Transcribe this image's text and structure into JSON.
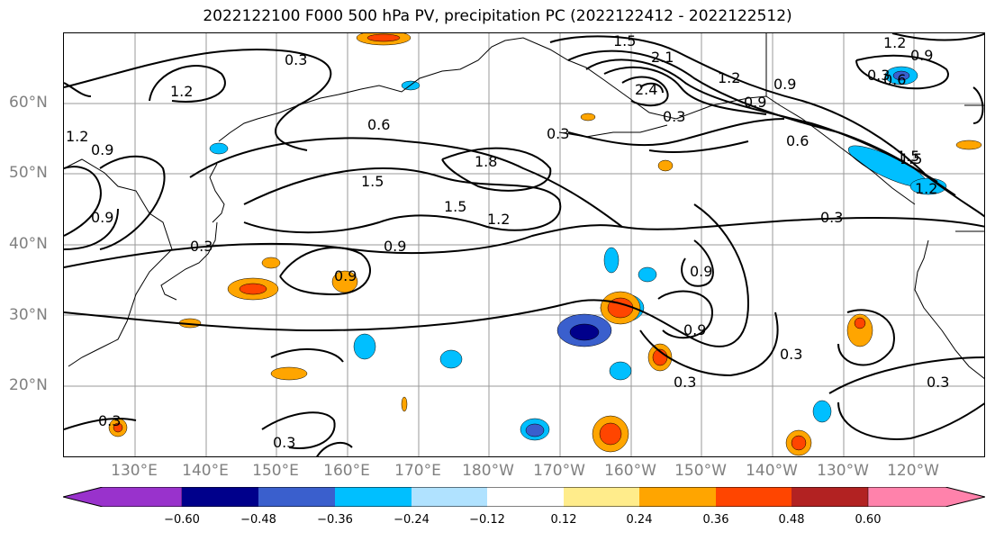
{
  "title": "2022122100 F000 500 hPa PV, precipitation PC (2022122412 - 2022122512)",
  "latitude_labels": [
    "60°N",
    "50°N",
    "40°N",
    "30°N",
    "20°N"
  ],
  "longitude_labels": [
    "130°E",
    "140°E",
    "150°E",
    "160°E",
    "170°E",
    "180°W",
    "170°W",
    "160°W",
    "150°W",
    "140°W",
    "130°W",
    "120°W"
  ],
  "contour_labels": [
    "0.3",
    "1.2",
    "0.6",
    "0.3",
    "1.5",
    "2.1",
    "2.4",
    "1.2",
    "0.9",
    "0.3",
    "0.6",
    "1.5",
    "1.2",
    "0.6",
    "0.9",
    "1.2",
    "0.9",
    "1.8",
    "1.5",
    "1.2",
    "1.5",
    "0.9",
    "0.3",
    "0.3",
    "0.9",
    "0.9",
    "0.9",
    "0.9",
    "0.3",
    "0.3",
    "0.3",
    "0.3",
    "0.3",
    "0.3",
    "1.5",
    "1.2",
    "0.9"
  ],
  "colorbar": {
    "ticks": [
      "−0.60",
      "−0.48",
      "−0.36",
      "−0.24",
      "−0.12",
      "0.12",
      "0.24",
      "0.36",
      "0.48",
      "0.60"
    ],
    "colors": [
      "#9932cc",
      "#00008b",
      "#3a5fcd",
      "#00bfff",
      "#b0e2ff",
      "#ffffff",
      "#ffec8b",
      "#ffa500",
      "#ff4500",
      "#b22222",
      "#ff82ab"
    ]
  },
  "colors": {
    "contour": "#000000",
    "coastline": "#000000",
    "grid": "#999999",
    "axis_label": "#808080"
  }
}
